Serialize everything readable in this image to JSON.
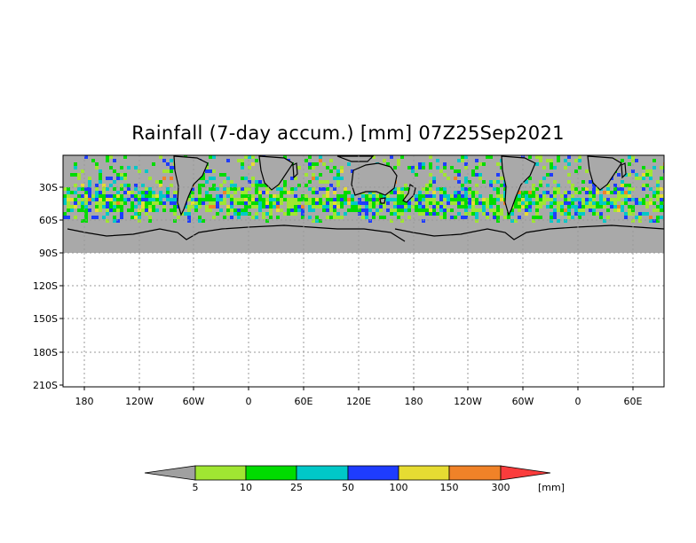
{
  "title": "Rainfall (7-day accum.) [mm] 07Z25Sep2021",
  "map": {
    "lat_labels": [
      "30S",
      "60S",
      "90S",
      "120S",
      "150S",
      "180S",
      "210S"
    ],
    "lon_labels": [
      "180",
      "120W",
      "60W",
      "0",
      "60E",
      "120E",
      "180",
      "120W",
      "60W",
      "0",
      "60E"
    ],
    "missing_color": "#a9a9a9",
    "grid": "dotted"
  },
  "colorbar": {
    "labels": [
      "5",
      "10",
      "25",
      "50",
      "100",
      "150",
      "300"
    ],
    "unit": "[mm]",
    "colors": [
      "#a0a0a0",
      "#a0e632",
      "#00dc00",
      "#00c8c8",
      "#1e3cff",
      "#e6dc32",
      "#f08228",
      "#fa3c3c"
    ]
  }
}
